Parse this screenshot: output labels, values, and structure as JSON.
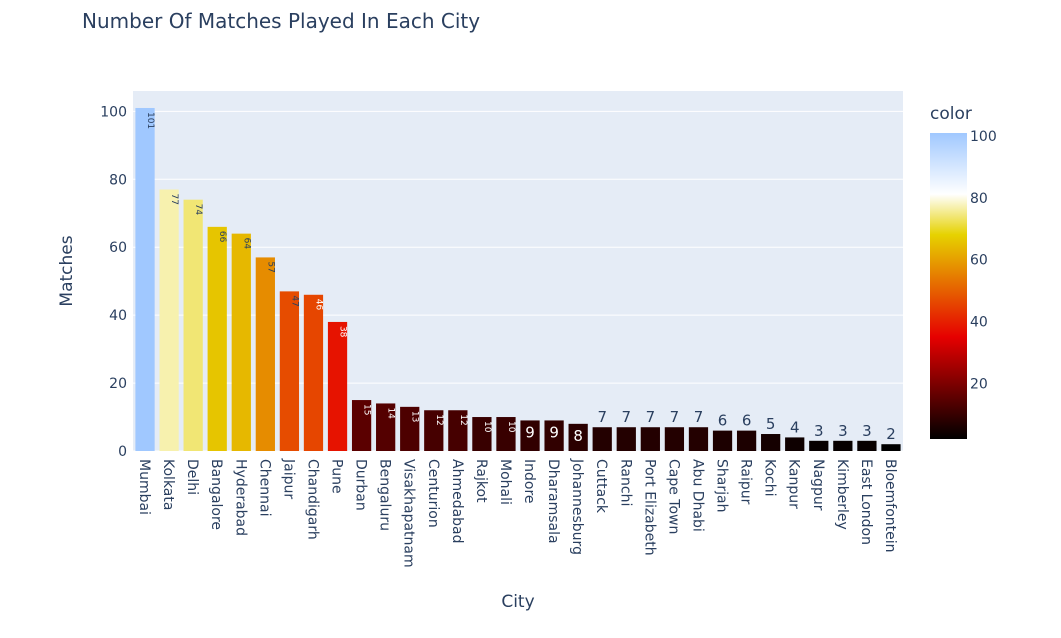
{
  "chart_data": {
    "type": "bar",
    "title": "Number Of Matches Played In Each City",
    "xlabel": "City",
    "ylabel": "Matches",
    "ylim": [
      0,
      106
    ],
    "yticks": [
      0,
      20,
      40,
      60,
      80,
      100
    ],
    "grid": true,
    "categories": [
      "Mumbai",
      "Kolkata",
      "Delhi",
      "Bangalore",
      "Hyderabad",
      "Chennai",
      "Jaipur",
      "Chandigarh",
      "Pune",
      "Durban",
      "Bengaluru",
      "Visakhapatnam",
      "Centurion",
      "Ahmedabad",
      "Rajkot",
      "Mohali",
      "Indore",
      "Dharamsala",
      "Johannesburg",
      "Cuttack",
      "Ranchi",
      "Port Elizabeth",
      "Cape Town",
      "Abu Dhabi",
      "Sharjah",
      "Raipur",
      "Kochi",
      "Kanpur",
      "Nagpur",
      "Kimberley",
      "East London",
      "Bloemfontein"
    ],
    "values": [
      101,
      77,
      74,
      66,
      64,
      57,
      47,
      46,
      38,
      15,
      14,
      13,
      12,
      12,
      10,
      10,
      9,
      9,
      8,
      7,
      7,
      7,
      7,
      7,
      6,
      6,
      5,
      4,
      3,
      3,
      3,
      2
    ],
    "colorbar": {
      "title": "color",
      "ticks": [
        20,
        40,
        60,
        80,
        100
      ],
      "range": [
        2,
        101
      ]
    }
  },
  "colors": {
    "plot_bg": "#e5ecf6",
    "grid": "#ffffff",
    "text": "#2a3f5f",
    "colorscale": [
      "#000000",
      "#e60000",
      "#e6d200",
      "#ffffff",
      "#a0c8ff"
    ]
  }
}
